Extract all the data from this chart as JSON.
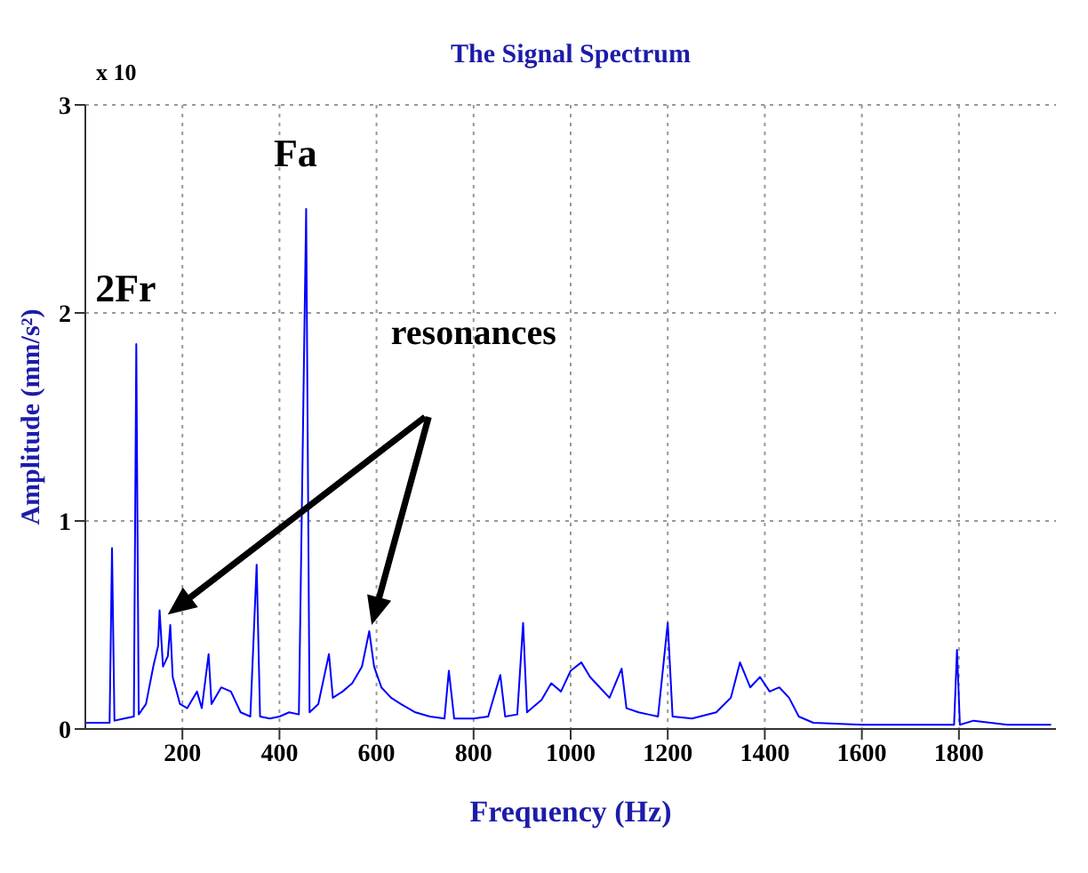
{
  "chart_data": {
    "type": "line",
    "title": "The Signal Spectrum",
    "xlabel": "Frequency (Hz)",
    "ylabel": "Amplitude (mm/s²)",
    "color": "#0000ff",
    "grid": true,
    "annotations": [
      {
        "text": "2Fr",
        "x": 105,
        "y": 1.85
      },
      {
        "text": "Fa",
        "x": 455,
        "y": 2.5
      },
      "resonances",
      "x 10"
    ],
    "x": [
      0,
      20,
      50,
      55,
      60,
      80,
      100,
      105,
      110,
      125,
      140,
      150,
      153,
      160,
      170,
      175,
      180,
      195,
      210,
      230,
      240,
      254,
      260,
      280,
      300,
      320,
      340,
      353,
      360,
      380,
      400,
      420,
      440,
      455,
      462,
      480,
      502,
      510,
      530,
      550,
      570,
      585,
      595,
      610,
      630,
      650,
      680,
      710,
      740,
      749,
      760,
      800,
      830,
      855,
      865,
      890,
      902,
      910,
      940,
      960,
      980,
      1000,
      1022,
      1040,
      1060,
      1080,
      1105,
      1115,
      1140,
      1160,
      1180,
      1200,
      1210,
      1250,
      1300,
      1330,
      1349,
      1370,
      1390,
      1410,
      1430,
      1450,
      1470,
      1500,
      1600,
      1700,
      1790,
      1796,
      1802,
      1830,
      1900,
      1990
    ],
    "values": [
      0.03,
      0.03,
      0.03,
      0.87,
      0.04,
      0.05,
      0.06,
      1.85,
      0.07,
      0.12,
      0.3,
      0.4,
      0.57,
      0.3,
      0.35,
      0.5,
      0.25,
      0.12,
      0.1,
      0.18,
      0.1,
      0.36,
      0.12,
      0.2,
      0.18,
      0.08,
      0.06,
      0.79,
      0.06,
      0.05,
      0.06,
      0.08,
      0.07,
      2.5,
      0.08,
      0.12,
      0.36,
      0.15,
      0.18,
      0.22,
      0.3,
      0.47,
      0.3,
      0.2,
      0.15,
      0.12,
      0.08,
      0.06,
      0.05,
      0.28,
      0.05,
      0.05,
      0.06,
      0.26,
      0.06,
      0.07,
      0.51,
      0.08,
      0.14,
      0.22,
      0.18,
      0.28,
      0.32,
      0.25,
      0.2,
      0.15,
      0.29,
      0.1,
      0.08,
      0.07,
      0.06,
      0.51,
      0.06,
      0.05,
      0.08,
      0.15,
      0.32,
      0.2,
      0.25,
      0.18,
      0.2,
      0.15,
      0.06,
      0.03,
      0.02,
      0.02,
      0.02,
      0.38,
      0.02,
      0.04,
      0.02,
      0.02
    ],
    "xlim": [
      0,
      2000
    ],
    "xticks": [
      200,
      400,
      600,
      800,
      1000,
      1200,
      1400,
      1600,
      1800
    ],
    "ylim": [
      0,
      3
    ],
    "yticks": [
      0,
      1,
      2,
      3
    ]
  }
}
